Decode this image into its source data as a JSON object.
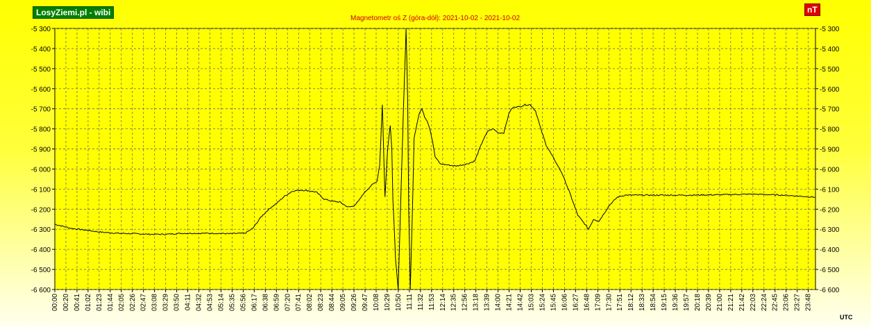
{
  "brand": "LosyZiemi.pl - wibi",
  "unit": "nT",
  "utc_label": "UTC",
  "chart_data": {
    "type": "line",
    "title": "Magnetometr oś Z (góra-dół): 2021-10-02 - 2021-10-02",
    "xlabel": "",
    "ylabel": "",
    "ylim": [
      -6600,
      -5300
    ],
    "yticks": [
      -5300,
      -5400,
      -5500,
      -5600,
      -5700,
      -5800,
      -5900,
      -6000,
      -6100,
      -6200,
      -6300,
      -6400,
      -6500,
      -6600
    ],
    "ytick_labels": [
      "-5 300",
      "-5 400",
      "-5 500",
      "-5 600",
      "-5 700",
      "-5 800",
      "-5 900",
      "-6 000",
      "-6 100",
      "-6 200",
      "-6 300",
      "-6 400",
      "-6 500",
      "-6 600"
    ],
    "xlim": [
      0,
      1440
    ],
    "xtick_labels": [
      "00:00",
      "00:20",
      "00:41",
      "01:02",
      "01:23",
      "01:44",
      "02:05",
      "02:26",
      "02:47",
      "03:08",
      "03:29",
      "03:50",
      "04:11",
      "04:32",
      "04:53",
      "05:14",
      "05:35",
      "05:56",
      "06:17",
      "06:38",
      "06:59",
      "07:20",
      "07:41",
      "08:02",
      "08:23",
      "08:44",
      "09:05",
      "09:26",
      "09:47",
      "10:08",
      "10:29",
      "10:50",
      "11:11",
      "11:32",
      "11:53",
      "12:14",
      "12:35",
      "12:56",
      "13:18",
      "13:39",
      "14:00",
      "14:21",
      "14:42",
      "15:03",
      "15:24",
      "15:45",
      "16:06",
      "16:27",
      "16:48",
      "17:09",
      "17:30",
      "17:51",
      "18:12",
      "18:33",
      "18:54",
      "19:15",
      "19:36",
      "19:57",
      "20:18",
      "20:39",
      "21:00",
      "21:21",
      "21:42",
      "22:03",
      "22:24",
      "22:45",
      "23:06",
      "23:27",
      "23:48"
    ],
    "grid": true,
    "colors": {
      "line": "#000000",
      "plot_bg": "#ffff00",
      "grid": "#666666",
      "title": "#d00000"
    },
    "series": [
      {
        "x": [
          "00:00",
          "00:30",
          "01:00",
          "01:30",
          "02:00",
          "02:30",
          "03:00",
          "03:30",
          "04:00",
          "04:30",
          "05:00",
          "05:30",
          "06:00",
          "06:15",
          "06:30",
          "06:45",
          "07:00",
          "07:15",
          "07:30",
          "07:45",
          "08:00",
          "08:15",
          "08:30",
          "08:45",
          "09:00",
          "09:15",
          "09:25",
          "09:35",
          "09:45",
          "10:00",
          "10:10",
          "10:15",
          "10:20",
          "10:25",
          "10:30",
          "10:35",
          "10:38",
          "10:40",
          "10:43",
          "10:45",
          "10:50",
          "10:55",
          "11:00",
          "11:05",
          "11:08",
          "11:10",
          "11:13",
          "11:18",
          "11:20",
          "11:25",
          "11:30",
          "11:35",
          "11:40",
          "11:45",
          "11:50",
          "11:55",
          "12:00",
          "12:10",
          "12:20",
          "12:30",
          "12:40",
          "13:00",
          "13:15",
          "13:30",
          "13:40",
          "13:50",
          "14:00",
          "14:10",
          "14:20",
          "14:25",
          "14:30",
          "14:40",
          "14:50",
          "15:00",
          "15:10",
          "15:20",
          "15:30",
          "15:45",
          "16:00",
          "16:15",
          "16:30",
          "16:45",
          "16:50",
          "17:00",
          "17:10",
          "17:20",
          "17:30",
          "17:45",
          "18:00",
          "18:30",
          "19:00",
          "20:00",
          "21:00",
          "22:00",
          "23:00",
          "23:59"
        ],
        "y": [
          -6275,
          -6295,
          -6305,
          -6315,
          -6320,
          -6322,
          -6325,
          -6325,
          -6320,
          -6320,
          -6320,
          -6322,
          -6320,
          -6295,
          -6240,
          -6200,
          -6170,
          -6135,
          -6110,
          -6105,
          -6108,
          -6115,
          -6150,
          -6160,
          -6165,
          -6190,
          -6185,
          -6160,
          -6120,
          -6080,
          -6060,
          -5980,
          -5680,
          -6140,
          -5900,
          -5780,
          -5900,
          -6150,
          -6320,
          -6450,
          -6600,
          -6150,
          -5700,
          -5300,
          -5650,
          -6200,
          -6600,
          -6100,
          -5850,
          -5780,
          -5720,
          -5700,
          -5740,
          -5760,
          -5800,
          -5860,
          -5940,
          -5975,
          -5978,
          -5982,
          -5985,
          -5975,
          -5960,
          -5860,
          -5810,
          -5800,
          -5820,
          -5820,
          -5720,
          -5700,
          -5690,
          -5690,
          -5680,
          -5680,
          -5710,
          -5800,
          -5880,
          -5950,
          -6020,
          -6120,
          -6230,
          -6280,
          -6300,
          -6250,
          -6260,
          -6220,
          -6180,
          -6140,
          -6130,
          -6130,
          -6130,
          -6130,
          -6128,
          -6125,
          -6130,
          -6140
        ]
      }
    ]
  }
}
